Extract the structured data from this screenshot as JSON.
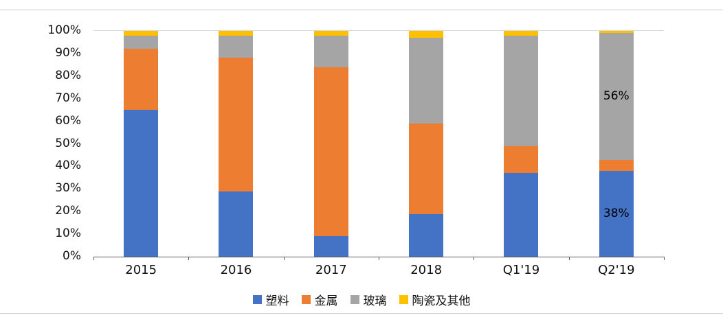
{
  "chart_data": {
    "type": "bar",
    "subtype": "stacked-100-percent",
    "title": "",
    "xlabel": "",
    "ylabel": "",
    "ylim": [
      0,
      100
    ],
    "grid": false,
    "legend_position": "bottom-center",
    "categories": [
      "2015",
      "2016",
      "2017",
      "2018",
      "Q1'19",
      "Q2'19"
    ],
    "series": [
      {
        "name": "塑料",
        "color": "#4472C4",
        "values": [
          65,
          29,
          9,
          19,
          37,
          38
        ]
      },
      {
        "name": "金属",
        "color": "#ED7D31",
        "values": [
          27,
          59,
          75,
          40,
          12,
          5
        ]
      },
      {
        "name": "玻璃",
        "color": "#A5A5A5",
        "values": [
          6,
          10,
          14,
          38,
          49,
          56
        ]
      },
      {
        "name": "陶瓷及其他",
        "color": "#FFC000",
        "values": [
          2,
          2,
          2,
          3,
          2,
          1
        ]
      }
    ],
    "y_ticks": [
      "0%",
      "10%",
      "20%",
      "30%",
      "40%",
      "50%",
      "60%",
      "70%",
      "80%",
      "90%",
      "100%"
    ],
    "annotations": [
      {
        "category": "Q2'19",
        "series": "玻璃",
        "text": "56%"
      },
      {
        "category": "Q2'19",
        "series": "塑料",
        "text": "38%"
      }
    ]
  }
}
